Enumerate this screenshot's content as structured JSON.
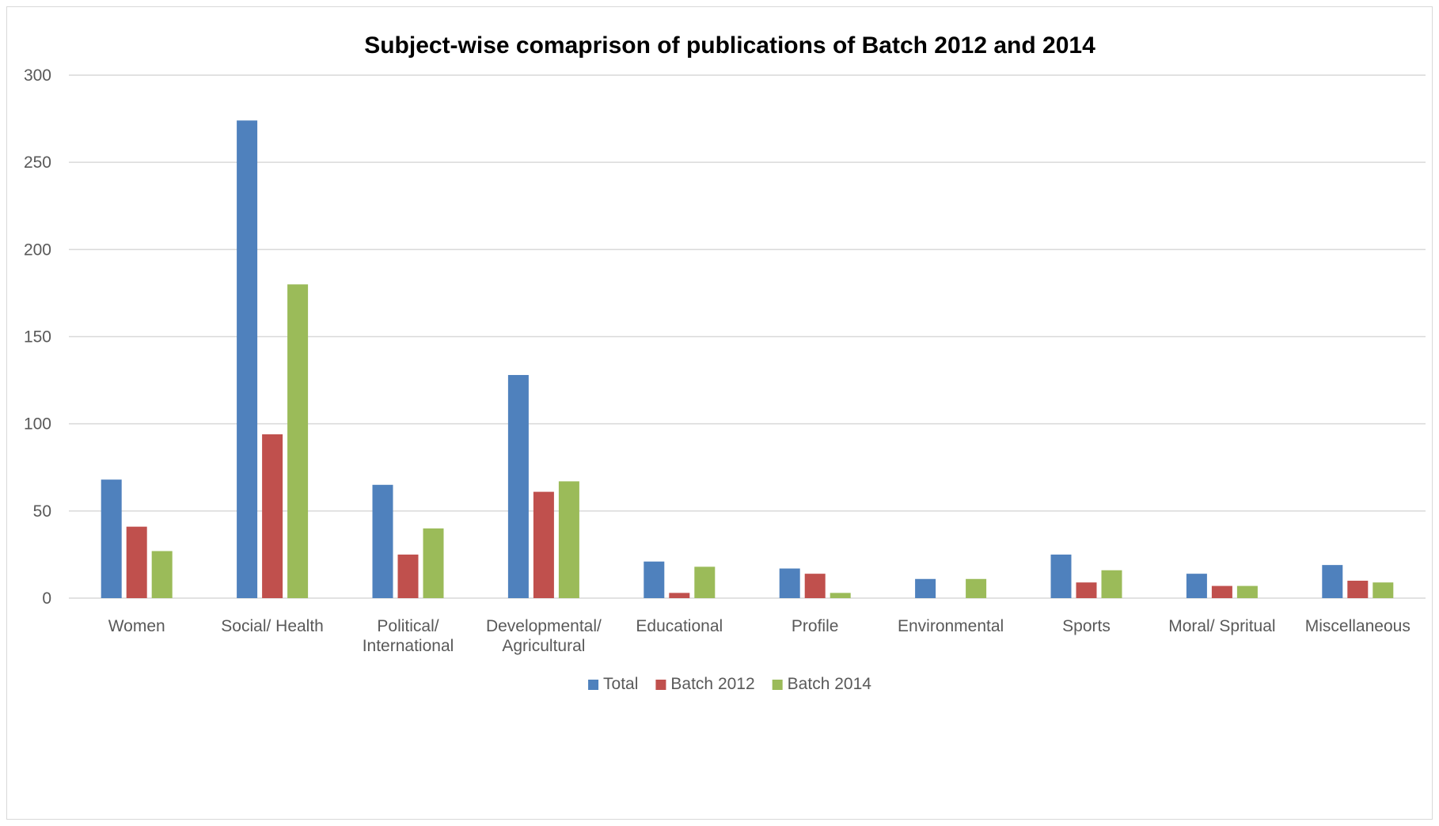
{
  "chart_data": {
    "type": "bar",
    "title": "Subject-wise comaprison of publications of Batch 2012 and 2014",
    "xlabel": "",
    "ylabel": "",
    "ylim": [
      0,
      300
    ],
    "yticks": [
      0,
      50,
      100,
      150,
      200,
      250,
      300
    ],
    "grid": true,
    "legend_position": "bottom",
    "categories": [
      [
        "Women"
      ],
      [
        "Social/ Health"
      ],
      [
        "Political/",
        "International"
      ],
      [
        "Developmental/",
        "Agricultural"
      ],
      [
        "Educational"
      ],
      [
        "Profile"
      ],
      [
        "Environmental"
      ],
      [
        "Sports"
      ],
      [
        "Moral/ Spritual"
      ],
      [
        "Miscellaneous"
      ]
    ],
    "series": [
      {
        "name": "Total",
        "color": "#4f81bd",
        "values": [
          68,
          274,
          65,
          128,
          21,
          17,
          11,
          25,
          14,
          19
        ]
      },
      {
        "name": "Batch 2012",
        "color": "#c0504d",
        "values": [
          41,
          94,
          25,
          61,
          3,
          14,
          0,
          9,
          7,
          10
        ]
      },
      {
        "name": "Batch 2014",
        "color": "#9bbb59",
        "values": [
          27,
          180,
          40,
          67,
          18,
          3,
          11,
          16,
          7,
          9
        ]
      }
    ]
  }
}
